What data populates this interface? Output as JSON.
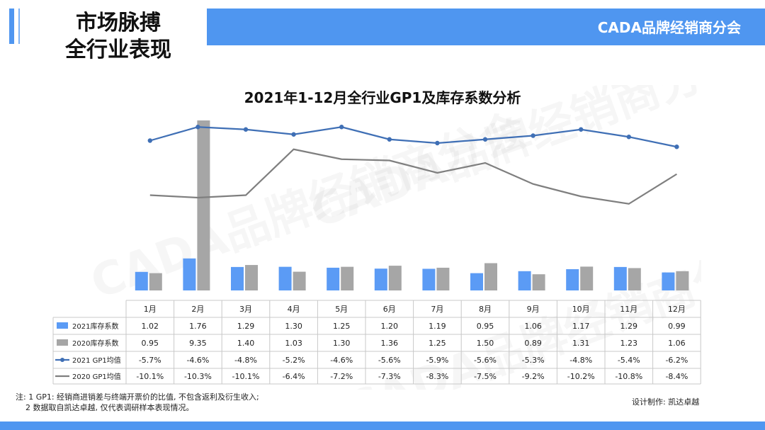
{
  "header": {
    "title_line1": "市场脉搏",
    "title_line2": "全行业表现",
    "brand": "CADA品牌经销商分会",
    "accent_color": "#4f96f0"
  },
  "watermark_text": "CADA品牌经销商分会",
  "chart_data": {
    "type": "bar",
    "title": "2021年1-12月全行业GP1及库存系数分析",
    "categories": [
      "1月",
      "2月",
      "3月",
      "4月",
      "5月",
      "6月",
      "7月",
      "8月",
      "9月",
      "10月",
      "11月",
      "12月"
    ],
    "series": [
      {
        "name": "2021库存系数",
        "type": "bar",
        "color": "#5b9bf5",
        "values": [
          1.02,
          1.76,
          1.29,
          1.3,
          1.25,
          1.2,
          1.19,
          0.95,
          1.06,
          1.17,
          1.29,
          0.99
        ],
        "labels": [
          "1.02",
          "1.76",
          "1.29",
          "1.30",
          "1.25",
          "1.20",
          "1.19",
          "0.95",
          "1.06",
          "1.17",
          "1.29",
          "0.99"
        ]
      },
      {
        "name": "2020库存系数",
        "type": "bar",
        "color": "#a6a6a6",
        "values": [
          0.95,
          9.35,
          1.4,
          1.03,
          1.3,
          1.36,
          1.25,
          1.5,
          0.89,
          1.31,
          1.23,
          1.06
        ],
        "labels": [
          "0.95",
          "9.35",
          "1.40",
          "1.03",
          "1.30",
          "1.36",
          "1.25",
          "1.50",
          "0.89",
          "1.31",
          "1.23",
          "1.06"
        ]
      },
      {
        "name": "2021 GP1均值",
        "type": "line",
        "color": "#3f6fb5",
        "markers": true,
        "values": [
          -5.7,
          -4.6,
          -4.8,
          -5.2,
          -4.6,
          -5.6,
          -5.9,
          -5.6,
          -5.3,
          -4.8,
          -5.4,
          -6.2
        ],
        "labels": [
          "-5.7%",
          "-4.6%",
          "-4.8%",
          "-5.2%",
          "-4.6%",
          "-5.6%",
          "-5.9%",
          "-5.6%",
          "-5.3%",
          "-4.8%",
          "-5.4%",
          "-6.2%"
        ]
      },
      {
        "name": "2020 GP1均值",
        "type": "line",
        "color": "#7f7f7f",
        "markers": false,
        "values": [
          -10.1,
          -10.3,
          -10.1,
          -6.4,
          -7.2,
          -7.3,
          -8.3,
          -7.5,
          -9.2,
          -10.2,
          -10.8,
          -8.4
        ],
        "labels": [
          "-10.1%",
          "-10.3%",
          "-10.1%",
          "-6.4%",
          "-7.2%",
          "-7.3%",
          "-8.3%",
          "-7.5%",
          "-9.2%",
          "-10.2%",
          "-10.8%",
          "-8.4%"
        ]
      }
    ],
    "bar_axis_max": 9.35,
    "line_axis_range": [
      -17.5,
      -3.5
    ],
    "legend": "data-table-below",
    "grid": false
  },
  "footnote": {
    "line1": "注: 1 GP1: 经销商进销差与终端开票价的比值, 不包含返利及衍生收入;",
    "line2": "2 数据取自凯达卓越, 仅代表调研样本表现情况。"
  },
  "credit": "设计制作: 凯达卓越"
}
